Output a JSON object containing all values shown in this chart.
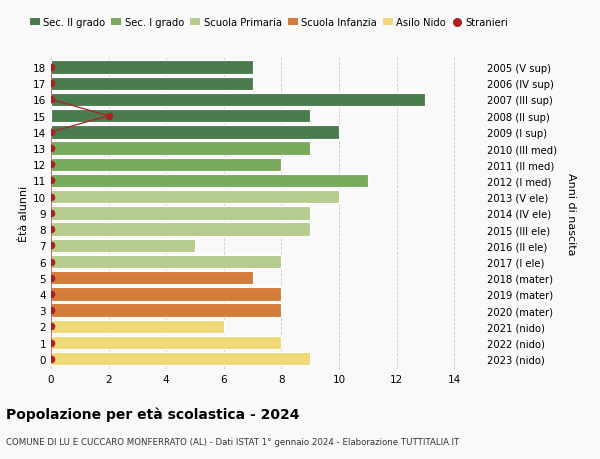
{
  "ages": [
    18,
    17,
    16,
    15,
    14,
    13,
    12,
    11,
    10,
    9,
    8,
    7,
    6,
    5,
    4,
    3,
    2,
    1,
    0
  ],
  "years": [
    "2005 (V sup)",
    "2006 (IV sup)",
    "2007 (III sup)",
    "2008 (II sup)",
    "2009 (I sup)",
    "2010 (III med)",
    "2011 (II med)",
    "2012 (I med)",
    "2013 (V ele)",
    "2014 (IV ele)",
    "2015 (III ele)",
    "2016 (II ele)",
    "2017 (I ele)",
    "2018 (mater)",
    "2019 (mater)",
    "2020 (mater)",
    "2021 (nido)",
    "2022 (nido)",
    "2023 (nido)"
  ],
  "values": [
    7,
    7,
    13,
    9,
    10,
    9,
    8,
    11,
    10,
    9,
    9,
    5,
    8,
    7,
    8,
    8,
    6,
    8,
    9
  ],
  "bar_colors": [
    "#4a7c4e",
    "#4a7c4e",
    "#4a7c4e",
    "#4a7c4e",
    "#4a7c4e",
    "#7aaa5e",
    "#7aaa5e",
    "#7aaa5e",
    "#b5cc8e",
    "#b5cc8e",
    "#b5cc8e",
    "#b5cc8e",
    "#b5cc8e",
    "#d47c3a",
    "#d47c3a",
    "#d47c3a",
    "#f0d878",
    "#f0d878",
    "#f0d878"
  ],
  "stranieri_values": [
    0,
    0,
    0,
    2,
    0,
    0,
    0,
    0,
    0,
    0,
    0,
    0,
    0,
    0,
    0,
    0,
    0,
    0,
    0
  ],
  "stranieri_color": "#aa2222",
  "xlim": [
    0,
    15
  ],
  "xticks": [
    0,
    2,
    4,
    6,
    8,
    10,
    12,
    14
  ],
  "xlabel_left": "Ètà alunni",
  "xlabel_right": "Anni di nascita",
  "title": "Popolazione per età scolastica - 2024",
  "subtitle": "COMUNE DI LU E CUCCARO MONFERRATO (AL) - Dati ISTAT 1° gennaio 2024 - Elaborazione TUTTITALIA.IT",
  "legend_labels": [
    "Sec. II grado",
    "Sec. I grado",
    "Scuola Primaria",
    "Scuola Infanzia",
    "Asilo Nido",
    "Stranieri"
  ],
  "legend_colors": [
    "#4a7c4e",
    "#7aaa5e",
    "#b5cc8e",
    "#d47c3a",
    "#f0d878",
    "#aa2222"
  ],
  "bg_color": "#f9f9f9",
  "bar_height": 0.82,
  "grid_color": "#cccccc"
}
